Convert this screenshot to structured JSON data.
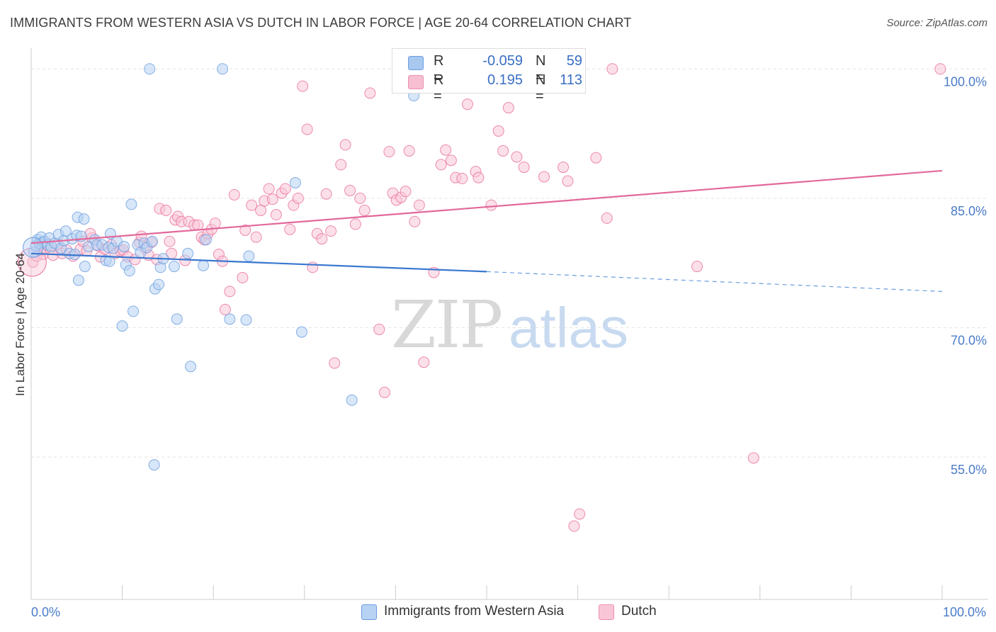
{
  "title": "IMMIGRANTS FROM WESTERN ASIA VS DUTCH IN LABOR FORCE | AGE 20-64 CORRELATION CHART",
  "source": "Source: ZipAtlas.com",
  "watermark": {
    "part1": "ZIP",
    "part2": "atlas"
  },
  "legend_top": {
    "rows": [
      {
        "r_label": "R =",
        "r_value": "-0.059",
        "n_label": "N =",
        "n_value": "59",
        "color": "#a9c8f0",
        "border": "#6b9de0"
      },
      {
        "r_label": "R =",
        "r_value": "0.195",
        "n_label": "N =",
        "n_value": "113",
        "color": "#f7bed2",
        "border": "#ec8fb0"
      }
    ]
  },
  "legend_bottom": [
    {
      "label": "Immigrants from Western Asia",
      "color": "#b7d2f3",
      "border": "#6b9de0"
    },
    {
      "label": "Dutch",
      "color": "#f9c6d7",
      "border": "#ec8fb0"
    }
  ],
  "chart_data": {
    "type": "scatter",
    "title": "IMMIGRANTS FROM WESTERN ASIA VS DUTCH IN LABOR FORCE | AGE 20-64 CORRELATION CHART",
    "xlabel": "",
    "ylabel": "In Labor Force | Age 20-64",
    "xlim": [
      0,
      100
    ],
    "ylim": [
      38.5,
      101.5
    ],
    "x_tick_labels": [
      {
        "value": 0,
        "label": "0.0%"
      },
      {
        "value": 100,
        "label": "100.0%"
      }
    ],
    "y_ticks": [
      {
        "value": 100,
        "label": "100.0%"
      },
      {
        "value": 85,
        "label": "85.0%"
      },
      {
        "value": 70,
        "label": "70.0%"
      },
      {
        "value": 55,
        "label": "55.0%"
      }
    ],
    "grid": true,
    "legend_position": "top-center",
    "series": [
      {
        "name": "Immigrants from Western Asia",
        "color": "#6b9de0",
        "fill": "#b7d2f3",
        "trend": {
          "x_start": 0,
          "y_start": 78.6,
          "x_solid_end": 50,
          "y_solid_end": 76.5,
          "x_end": 100,
          "y_end": 74.2
        },
        "points": [
          [
            0.3,
            78.8
          ],
          [
            0.5,
            79.5
          ],
          [
            0.7,
            80.2
          ],
          [
            0.9,
            79.8
          ],
          [
            1.1,
            80.5
          ],
          [
            1.3,
            79.9
          ],
          [
            1.5,
            80.0
          ],
          [
            1.8,
            79.6
          ],
          [
            2.0,
            80.4
          ],
          [
            2.2,
            79.4
          ],
          [
            2.6,
            79.8
          ],
          [
            3.0,
            80.8
          ],
          [
            3.3,
            79.2
          ],
          [
            3.6,
            80.1
          ],
          [
            3.8,
            81.2
          ],
          [
            4.2,
            78.6
          ],
          [
            4.5,
            80.3
          ],
          [
            4.8,
            78.5
          ],
          [
            5.0,
            80.7
          ],
          [
            5.1,
            82.8
          ],
          [
            5.2,
            75.5
          ],
          [
            5.5,
            80.6
          ],
          [
            5.8,
            82.6
          ],
          [
            5.9,
            77.1
          ],
          [
            6.3,
            79.4
          ],
          [
            7.0,
            80.2
          ],
          [
            7.2,
            79.6
          ],
          [
            7.8,
            79.6
          ],
          [
            8.2,
            77.8
          ],
          [
            8.5,
            79.3
          ],
          [
            8.6,
            77.7
          ],
          [
            9.0,
            79.2
          ],
          [
            9.4,
            80.0
          ],
          [
            8.7,
            80.9
          ],
          [
            10.2,
            79.4
          ],
          [
            10.4,
            77.3
          ],
          [
            10.8,
            76.6
          ],
          [
            11.2,
            71.9
          ],
          [
            10.0,
            70.2
          ],
          [
            11.0,
            84.3
          ],
          [
            11.7,
            79.6
          ],
          [
            12.0,
            78.7
          ],
          [
            12.4,
            79.8
          ],
          [
            12.7,
            79.3
          ],
          [
            13.0,
            100.0
          ],
          [
            13.3,
            80.0
          ],
          [
            13.5,
            54.1
          ],
          [
            13.6,
            74.5
          ],
          [
            14.0,
            75.0
          ],
          [
            14.2,
            77.0
          ],
          [
            14.5,
            78.0
          ],
          [
            15.7,
            77.1
          ],
          [
            16.0,
            71.0
          ],
          [
            17.5,
            65.5
          ],
          [
            17.2,
            78.6
          ],
          [
            19.2,
            80.2
          ],
          [
            18.9,
            77.2
          ],
          [
            21.0,
            100.0
          ],
          [
            21.8,
            71.0
          ],
          [
            23.6,
            70.9
          ],
          [
            23.9,
            78.3
          ],
          [
            29.0,
            86.8
          ],
          [
            29.7,
            69.5
          ],
          [
            35.2,
            61.6
          ],
          [
            42.0,
            96.9
          ]
        ]
      },
      {
        "name": "Dutch",
        "color": "#e8709a",
        "fill": "#f9c6d7",
        "trend": {
          "x_start": 0,
          "y_start": 79.8,
          "x_end": 100,
          "y_end": 88.2
        },
        "points": [
          [
            0.2,
            77.6
          ],
          [
            0.6,
            78.3
          ],
          [
            1.0,
            79.0
          ],
          [
            1.3,
            78.5
          ],
          [
            1.7,
            79.8
          ],
          [
            2.1,
            79.1
          ],
          [
            2.4,
            78.4
          ],
          [
            2.9,
            79.7
          ],
          [
            3.4,
            78.6
          ],
          [
            3.9,
            79.0
          ],
          [
            4.6,
            78.3
          ],
          [
            5.4,
            79.1
          ],
          [
            5.7,
            80.0
          ],
          [
            6.1,
            78.9
          ],
          [
            6.7,
            80.4
          ],
          [
            6.5,
            80.9
          ],
          [
            7.3,
            79.5
          ],
          [
            7.6,
            78.2
          ],
          [
            8.1,
            79.1
          ],
          [
            8.8,
            79.6
          ],
          [
            9.2,
            78.6
          ],
          [
            9.8,
            78.9
          ],
          [
            10.1,
            79.0
          ],
          [
            10.6,
            78.2
          ],
          [
            11.4,
            77.9
          ],
          [
            11.9,
            79.9
          ],
          [
            12.1,
            80.6
          ],
          [
            12.5,
            79.2
          ],
          [
            12.9,
            78.4
          ],
          [
            13.2,
            79.9
          ],
          [
            13.8,
            77.9
          ],
          [
            14.1,
            83.8
          ],
          [
            14.8,
            83.6
          ],
          [
            15.2,
            80.0
          ],
          [
            15.4,
            78.6
          ],
          [
            15.8,
            82.5
          ],
          [
            16.1,
            82.9
          ],
          [
            16.5,
            82.3
          ],
          [
            16.9,
            77.8
          ],
          [
            17.3,
            82.3
          ],
          [
            17.9,
            81.9
          ],
          [
            18.3,
            81.9
          ],
          [
            18.7,
            80.5
          ],
          [
            19.0,
            80.2
          ],
          [
            19.4,
            80.9
          ],
          [
            19.8,
            81.4
          ],
          [
            20.2,
            82.1
          ],
          [
            20.6,
            78.5
          ],
          [
            21.0,
            77.7
          ],
          [
            21.3,
            72.1
          ],
          [
            21.8,
            74.2
          ],
          [
            22.3,
            85.4
          ],
          [
            23.2,
            75.8
          ],
          [
            23.5,
            81.3
          ],
          [
            24.2,
            84.2
          ],
          [
            24.7,
            80.5
          ],
          [
            25.2,
            83.6
          ],
          [
            25.6,
            84.7
          ],
          [
            26.1,
            86.1
          ],
          [
            26.5,
            84.9
          ],
          [
            26.9,
            83.1
          ],
          [
            27.5,
            85.6
          ],
          [
            27.9,
            86.1
          ],
          [
            28.4,
            81.4
          ],
          [
            28.8,
            84.2
          ],
          [
            29.3,
            85.0
          ],
          [
            29.8,
            98.0
          ],
          [
            30.3,
            93.0
          ],
          [
            30.9,
            77.0
          ],
          [
            31.4,
            80.9
          ],
          [
            31.9,
            80.3
          ],
          [
            32.4,
            85.5
          ],
          [
            32.9,
            81.2
          ],
          [
            33.3,
            65.9
          ],
          [
            34.0,
            88.9
          ],
          [
            34.5,
            91.2
          ],
          [
            35.0,
            85.9
          ],
          [
            35.6,
            82.0
          ],
          [
            36.1,
            85.0
          ],
          [
            36.6,
            83.6
          ],
          [
            37.2,
            97.2
          ],
          [
            38.2,
            69.8
          ],
          [
            38.8,
            62.5
          ],
          [
            39.3,
            90.4
          ],
          [
            39.7,
            85.6
          ],
          [
            40.1,
            84.8
          ],
          [
            40.6,
            85.1
          ],
          [
            41.1,
            85.8
          ],
          [
            41.5,
            90.5
          ],
          [
            42.1,
            82.3
          ],
          [
            42.6,
            84.2
          ],
          [
            43.1,
            66.0
          ],
          [
            44.2,
            76.4
          ],
          [
            45.0,
            88.9
          ],
          [
            45.5,
            90.6
          ],
          [
            46.1,
            89.4
          ],
          [
            46.6,
            87.4
          ],
          [
            47.3,
            87.3
          ],
          [
            47.9,
            95.9
          ],
          [
            48.8,
            88.1
          ],
          [
            49.1,
            87.4
          ],
          [
            50.5,
            84.2
          ],
          [
            51.3,
            92.8
          ],
          [
            51.8,
            90.5
          ],
          [
            52.4,
            95.5
          ],
          [
            53.3,
            89.8
          ],
          [
            54.1,
            88.6
          ],
          [
            56.3,
            87.5
          ],
          [
            58.4,
            88.6
          ],
          [
            58.9,
            87.0
          ],
          [
            59.6,
            47.0
          ],
          [
            60.2,
            48.4
          ],
          [
            62.0,
            89.7
          ],
          [
            63.2,
            82.7
          ],
          [
            63.8,
            100.0
          ],
          [
            73.1,
            77.1
          ],
          [
            79.3,
            54.9
          ],
          [
            99.8,
            100.0
          ]
        ]
      }
    ]
  }
}
